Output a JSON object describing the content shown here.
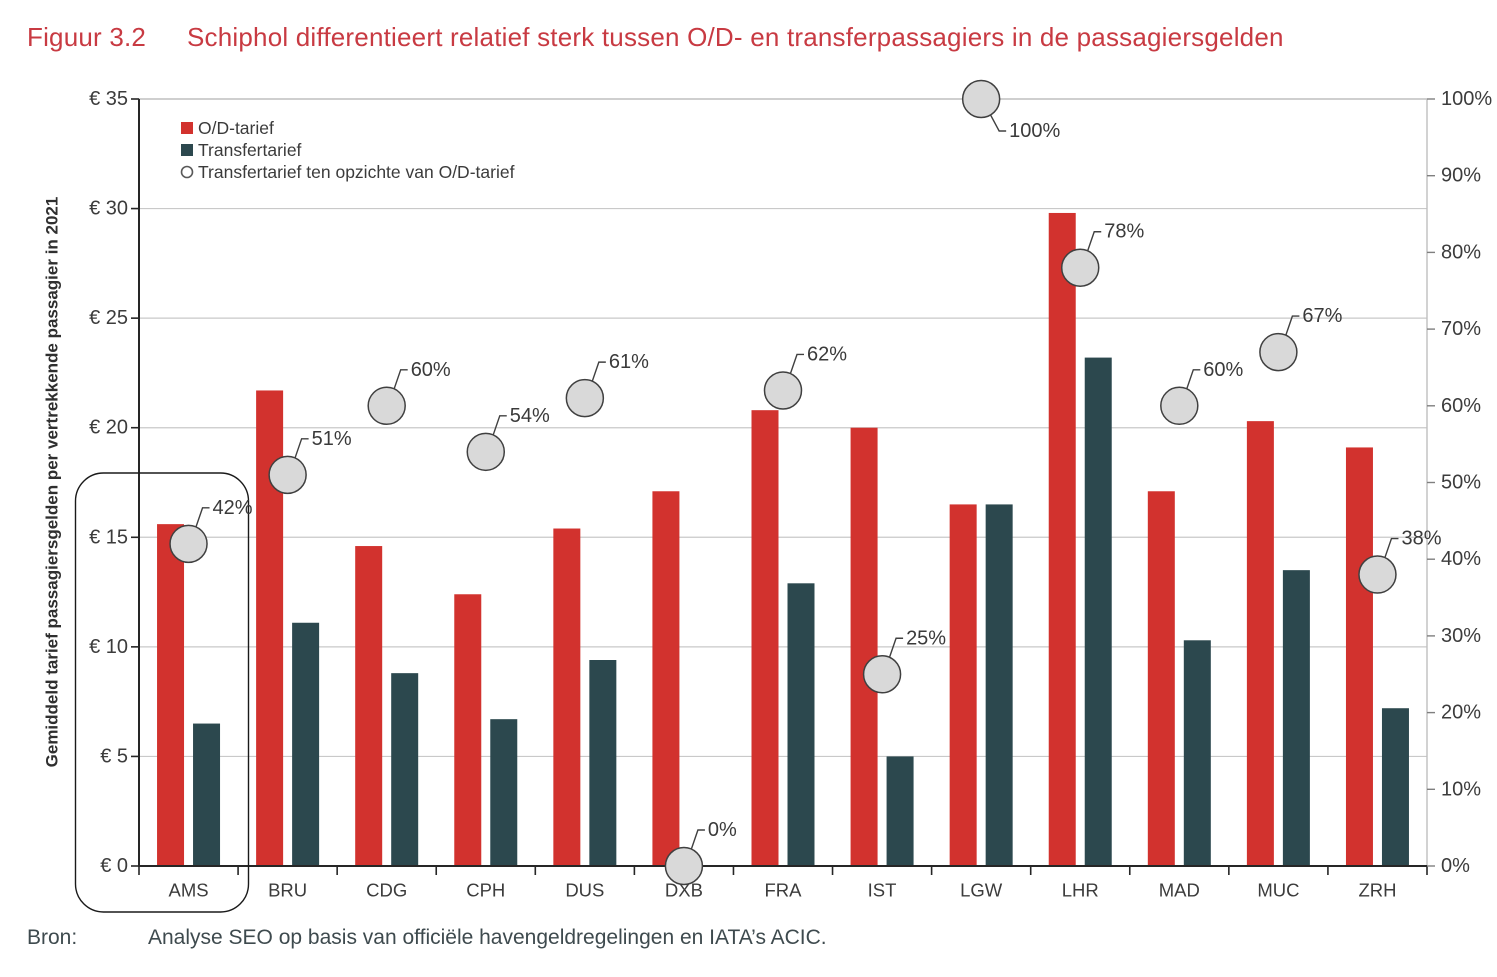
{
  "figure": {
    "label": "Figuur 3.2",
    "caption": "Schiphol differentieert relatief sterk tussen O/D- en transferpassagiers in de passagiersgelden"
  },
  "source": {
    "label": "Bron:",
    "text": "Analyse SEO op basis van officiële havengeldregelingen en IATA’s ACIC."
  },
  "colors": {
    "od_bar": "#d2322e",
    "transfer_bar": "#2c484e",
    "marker_fill": "#d9d9d9",
    "marker_stroke": "#404040",
    "gridline": "#c9c9c9",
    "axis": "#262626",
    "plot_border": "#bfbfbf",
    "text": "#3c3c3c",
    "title": "#c83a42"
  },
  "chart_data": {
    "type": "bar",
    "title": "Schiphol differentieert relatief sterk tussen O/D- en transferpassagiers in de passagiersgelden",
    "categories": [
      "AMS",
      "BRU",
      "CDG",
      "CPH",
      "DUS",
      "DXB",
      "FRA",
      "IST",
      "LGW",
      "LHR",
      "MAD",
      "MUC",
      "ZRH"
    ],
    "series": [
      {
        "name": "O/D-tarief",
        "type": "bar",
        "axis": "left",
        "color": "#d2322e",
        "values": [
          15.6,
          21.7,
          14.6,
          12.4,
          15.4,
          17.1,
          20.8,
          20.0,
          16.5,
          29.8,
          17.1,
          20.3,
          19.1
        ]
      },
      {
        "name": "Transfertarief",
        "type": "bar",
        "axis": "left",
        "color": "#2c484e",
        "values": [
          6.5,
          11.1,
          8.8,
          6.7,
          9.4,
          0.0,
          12.9,
          5.0,
          16.5,
          23.2,
          10.3,
          13.5,
          7.2
        ]
      },
      {
        "name": "Transfertarief ten opzichte van O/D-tarief",
        "type": "marker",
        "axis": "right",
        "values": [
          42,
          51,
          60,
          54,
          61,
          0,
          62,
          25,
          100,
          78,
          60,
          67,
          38
        ],
        "labels": [
          "42%",
          "51%",
          "60%",
          "54%",
          "61%",
          "0%",
          "62%",
          "25%",
          "100%",
          "78%",
          "60%",
          "67%",
          "38%"
        ],
        "marker_fill": "#d9d9d9",
        "marker_stroke": "#404040"
      }
    ],
    "y_left": {
      "label": "Gemiddeld tarief passagiersgelden per vertrekkende passagier in 2021",
      "min": 0,
      "max": 35,
      "tick_step": 5,
      "ticks": [
        "€ 0",
        "€ 5",
        "€ 10",
        "€ 15",
        "€ 20",
        "€ 25",
        "€ 30",
        "€ 35"
      ]
    },
    "y_right": {
      "min": 0,
      "max": 100,
      "tick_step": 10,
      "ticks": [
        "0%",
        "10%",
        "20%",
        "30%",
        "40%",
        "50%",
        "60%",
        "70%",
        "80%",
        "90%",
        "100%"
      ]
    },
    "grid": "horizontal",
    "legend_position": "top-left-inside",
    "highlight_category": "AMS"
  }
}
